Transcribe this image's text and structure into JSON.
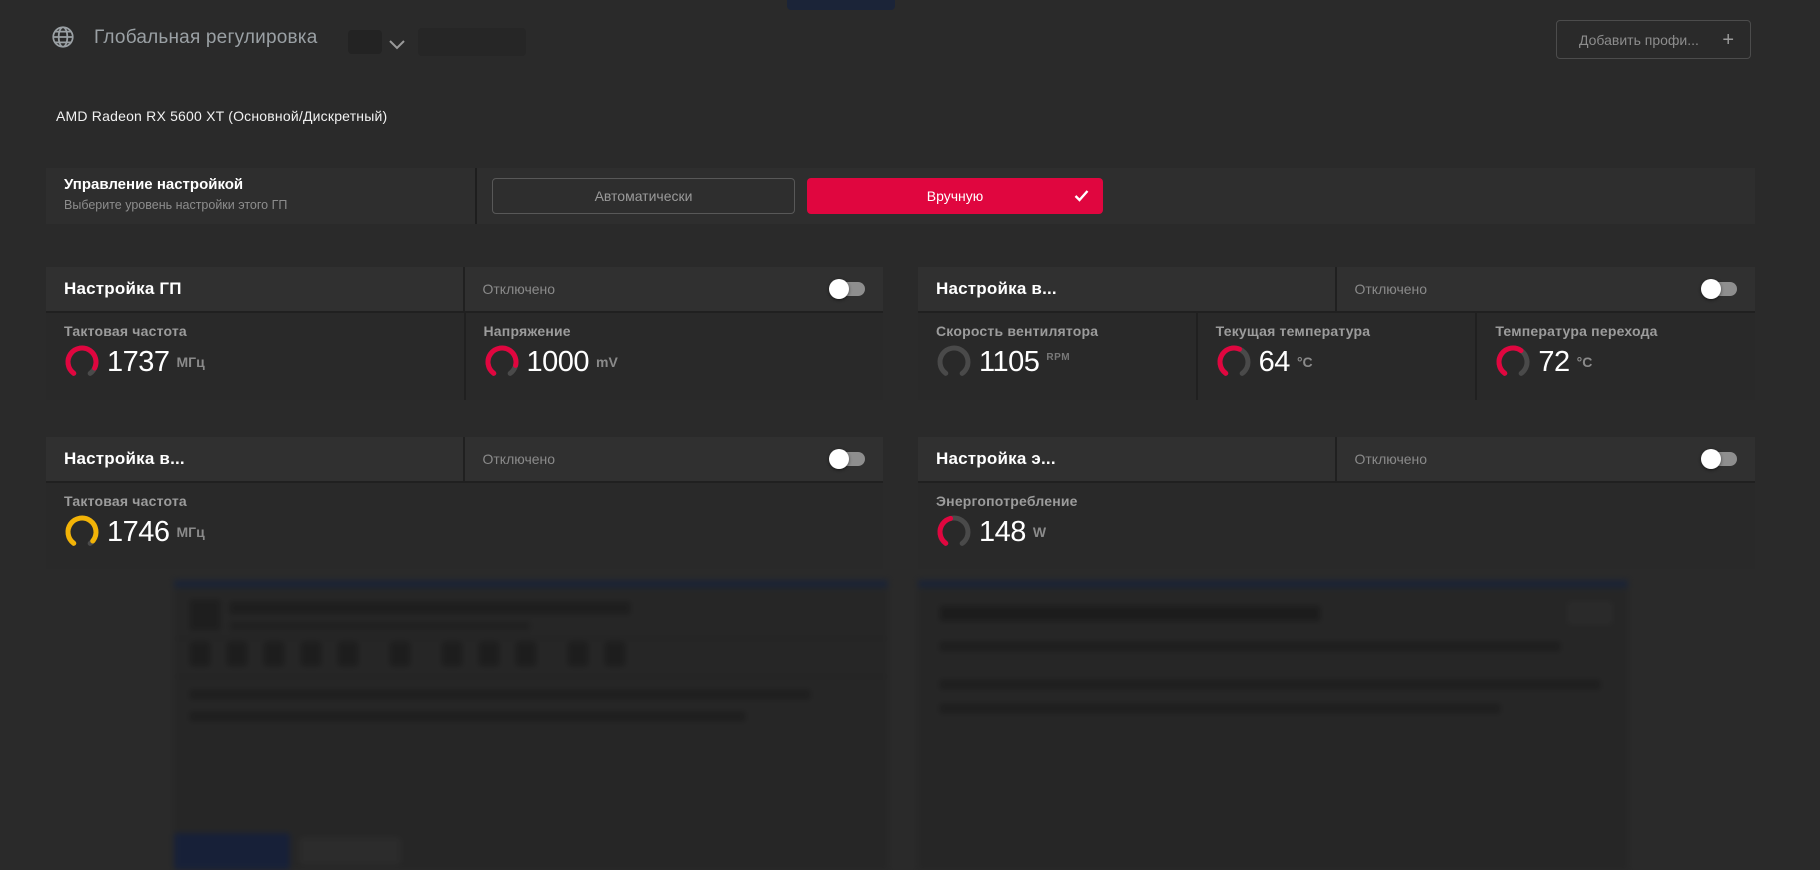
{
  "header": {
    "title": "Глобальная регулировка",
    "add_profile_label": "Добавить профи...",
    "plus": "+"
  },
  "gpu_name": "AMD Radeon RX 5600 XT (Основной/Дискретный)",
  "tuning_control": {
    "title": "Управление настройкой",
    "subtitle": "Выберите уровень настройки этого ГП",
    "auto_label": "Автоматически",
    "manual_label": "Вручную",
    "selected": "Вручную"
  },
  "cards": [
    {
      "title": "Настройка ГП",
      "status": "Отключено",
      "enabled": false,
      "metrics": [
        {
          "label": "Тактовая частота",
          "value": "1737",
          "unit": "МГц",
          "unit_class": "unit",
          "gauge_color": "#e0063f",
          "gauge_fill": 0.9
        },
        {
          "label": "Напряжение",
          "value": "1000",
          "unit": "mV",
          "unit_class": "unit",
          "gauge_color": "#e0063f",
          "gauge_fill": 0.86
        }
      ]
    },
    {
      "title": "Настройка в...",
      "status": "Отключено",
      "enabled": false,
      "metrics": [
        {
          "label": "Скорость вентилятора",
          "value": "1105",
          "unit": "RPM",
          "unit_class": "unit sm",
          "gauge_color": "#e0063f",
          "gauge_fill": 0
        },
        {
          "label": "Текущая температура",
          "value": "64",
          "unit": "°C",
          "unit_class": "unit",
          "gauge_color": "#e0063f",
          "gauge_fill": 0.58
        },
        {
          "label": "Температура перехода",
          "value": "72",
          "unit": "°C",
          "unit_class": "unit",
          "gauge_color": "#e0063f",
          "gauge_fill": 0.62
        }
      ]
    },
    {
      "title": "Настройка в...",
      "status": "Отключено",
      "enabled": false,
      "metrics": [
        {
          "label": "Тактовая частота",
          "value": "1746",
          "unit": "МГц",
          "unit_class": "unit",
          "gauge_color": "#f2b307",
          "gauge_fill": 0.95
        }
      ]
    },
    {
      "title": "Настройка э...",
      "status": "Отключено",
      "enabled": false,
      "metrics": [
        {
          "label": "Энергопотребление",
          "value": "148",
          "unit": "W",
          "unit_class": "unit",
          "gauge_color": "#e0063f",
          "gauge_fill": 0.45
        }
      ]
    }
  ],
  "colors": {
    "accent_red": "#e0063f",
    "accent_yellow": "#f2b307",
    "gauge_track": "#4a4a4a",
    "manual_button_bg": "#e0063f"
  }
}
